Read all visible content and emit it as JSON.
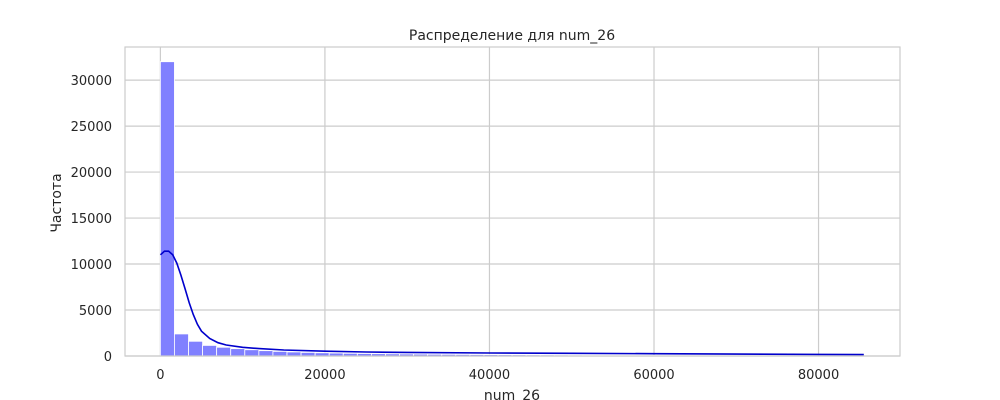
{
  "chart_data": {
    "type": "bar",
    "title": "Распределение для num_26",
    "xlabel": "num_26",
    "ylabel": "Частота",
    "xlim": [
      -4300,
      89900
    ],
    "ylim": [
      0,
      33600
    ],
    "x_ticks": [
      0,
      20000,
      40000,
      60000,
      80000
    ],
    "x_tick_labels": [
      "0",
      "20000",
      "40000",
      "60000",
      "80000"
    ],
    "y_ticks": [
      0,
      5000,
      10000,
      15000,
      20000,
      25000,
      30000
    ],
    "y_tick_labels": [
      "0",
      "5000",
      "10000",
      "15000",
      "20000",
      "25000",
      "30000"
    ],
    "grid": true,
    "legend": "none",
    "bin_start": 0,
    "bin_width": 1710,
    "values": [
      32000,
      2400,
      1600,
      1150,
      950,
      800,
      680,
      580,
      500,
      440,
      390,
      350,
      320,
      290,
      270,
      250,
      235,
      220,
      205,
      190,
      180,
      170,
      160,
      150,
      140,
      132,
      124,
      117,
      110,
      104,
      98,
      92,
      87,
      82,
      77,
      72,
      68,
      64,
      60,
      56,
      52,
      48,
      45,
      42,
      39,
      36,
      33,
      30,
      27,
      24
    ],
    "kde": {
      "x": [
        0,
        500,
        1000,
        1500,
        2000,
        2500,
        3000,
        3500,
        4000,
        4500,
        5000,
        6000,
        7000,
        8000,
        10000,
        12000,
        15000,
        20000,
        25000,
        30000,
        40000,
        50000,
        60000,
        70000,
        80000,
        85500
      ],
      "y": [
        11000,
        11400,
        11400,
        11000,
        10100,
        8800,
        7300,
        5800,
        4500,
        3450,
        2700,
        1900,
        1450,
        1200,
        950,
        800,
        650,
        520,
        440,
        390,
        330,
        290,
        250,
        210,
        170,
        150
      ]
    },
    "colors": {
      "bar": "#8080ff",
      "kde": "#0000cc",
      "grid": "#cccccc",
      "frame": "#cccccc"
    }
  }
}
